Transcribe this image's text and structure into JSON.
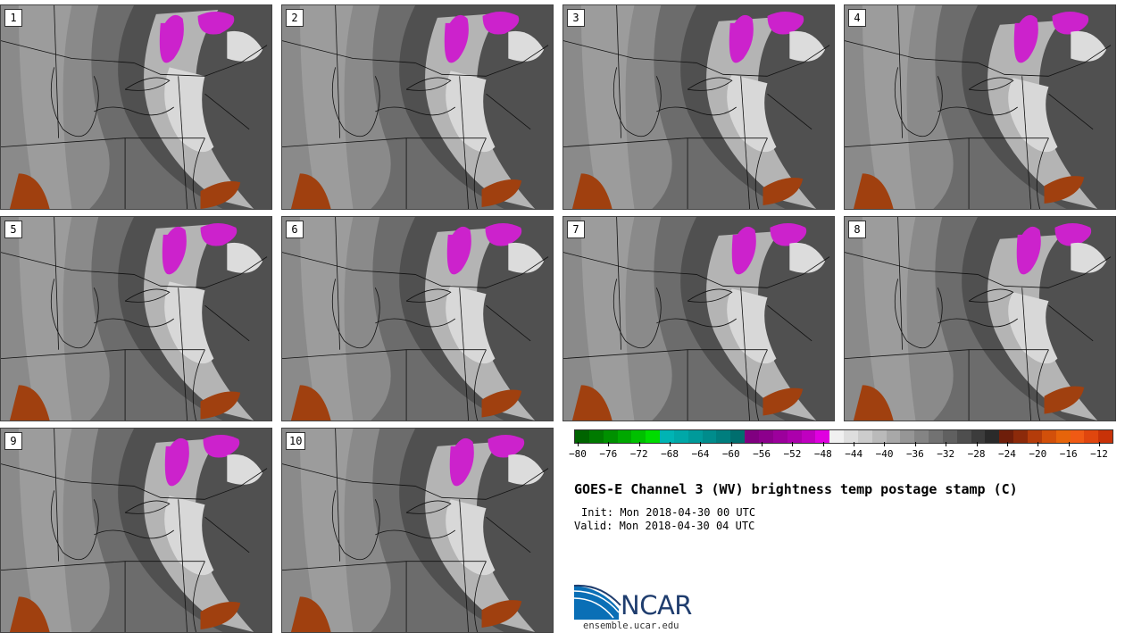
{
  "panels": [
    {
      "label": "1"
    },
    {
      "label": "2"
    },
    {
      "label": "3"
    },
    {
      "label": "4"
    },
    {
      "label": "5"
    },
    {
      "label": "6"
    },
    {
      "label": "7"
    },
    {
      "label": "8"
    },
    {
      "label": "9"
    },
    {
      "label": "10"
    }
  ],
  "colorbar": {
    "colors": [
      "#006400",
      "#007a00",
      "#009000",
      "#00a800",
      "#00c000",
      "#00dc00",
      "#00b4b4",
      "#00a8a8",
      "#009a9a",
      "#008c8c",
      "#007e7e",
      "#006e6e",
      "#800080",
      "#8c008c",
      "#9c009c",
      "#ac00ac",
      "#c000c0",
      "#e000e0",
      "#f0f0f0",
      "#dedede",
      "#cccccc",
      "#bababa",
      "#a8a8a8",
      "#969696",
      "#848484",
      "#727272",
      "#606060",
      "#4e4e4e",
      "#3c3c3c",
      "#2a2a2a",
      "#6e1e0a",
      "#8c2a0a",
      "#b43c0a",
      "#d2500a",
      "#e6640a",
      "#f05a14",
      "#e0460e",
      "#c83208"
    ],
    "ticks": [
      "−80",
      "−76",
      "−72",
      "−68",
      "−64",
      "−60",
      "−56",
      "−52",
      "−48",
      "−44",
      "−40",
      "−36",
      "−32",
      "−28",
      "−24",
      "−20",
      "−16",
      "−12"
    ]
  },
  "title": "GOES-E Channel 3 (WV) brightness temp postage stamp (C)",
  "init": "Init: Mon 2018-04-30 00 UTC",
  "valid": "Valid: Mon 2018-04-30 04 UTC",
  "logo": {
    "word": "NCAR",
    "icon": "ncar-logo-icon"
  },
  "site": "ensemble.ucar.edu"
}
